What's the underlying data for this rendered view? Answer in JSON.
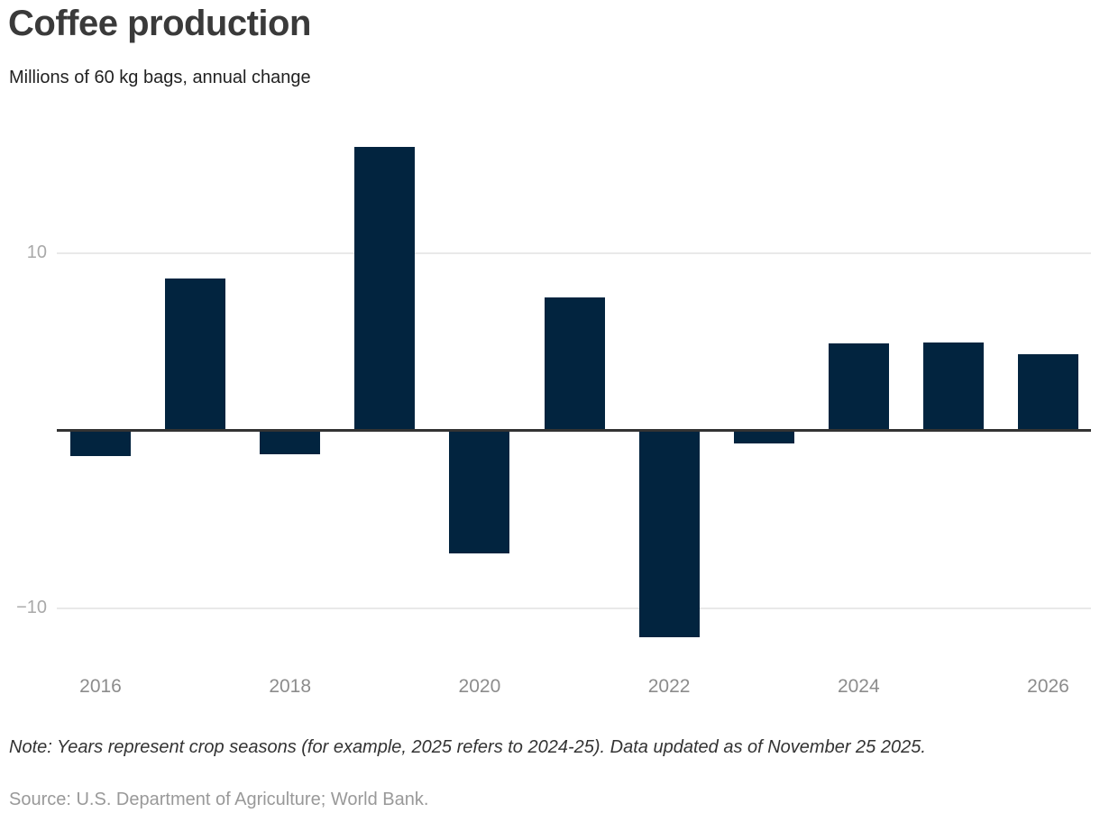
{
  "header": {
    "title": "Coffee production",
    "subtitle": "Millions of 60 kg bags, annual change"
  },
  "chart_data": {
    "type": "bar",
    "categories": [
      "2016",
      "2017",
      "2018",
      "2019",
      "2020",
      "2021",
      "2022",
      "2023",
      "2024",
      "2025",
      "2026"
    ],
    "values": [
      -1.4,
      8.6,
      -1.3,
      16.0,
      -6.9,
      7.5,
      -11.6,
      -0.7,
      4.9,
      5.0,
      4.3
    ],
    "title": "Coffee production",
    "subtitle": "Millions of 60 kg bags, annual change",
    "xlabel": "",
    "ylabel": "",
    "ylim": [
      -13.3,
      17.2
    ],
    "y_ticks": [
      10,
      -10
    ],
    "y_tick_labels": [
      "10",
      "−10"
    ],
    "x_tick_labels": [
      "2016",
      "2018",
      "2020",
      "2022",
      "2024",
      "2026"
    ],
    "x_tick_indices": [
      0,
      2,
      4,
      6,
      8,
      10
    ],
    "grid": "horizontal-only",
    "legend": "none",
    "bar_color": "#02243f",
    "zero_line_color": "#333333",
    "gridline_color": "#e9e9e9"
  },
  "footer": {
    "note": "Note: Years represent crop seasons (for example, 2025 refers to 2024-25). Data updated as of November 25 2025.",
    "source": "Source: U.S. Department of Agriculture; World Bank."
  }
}
